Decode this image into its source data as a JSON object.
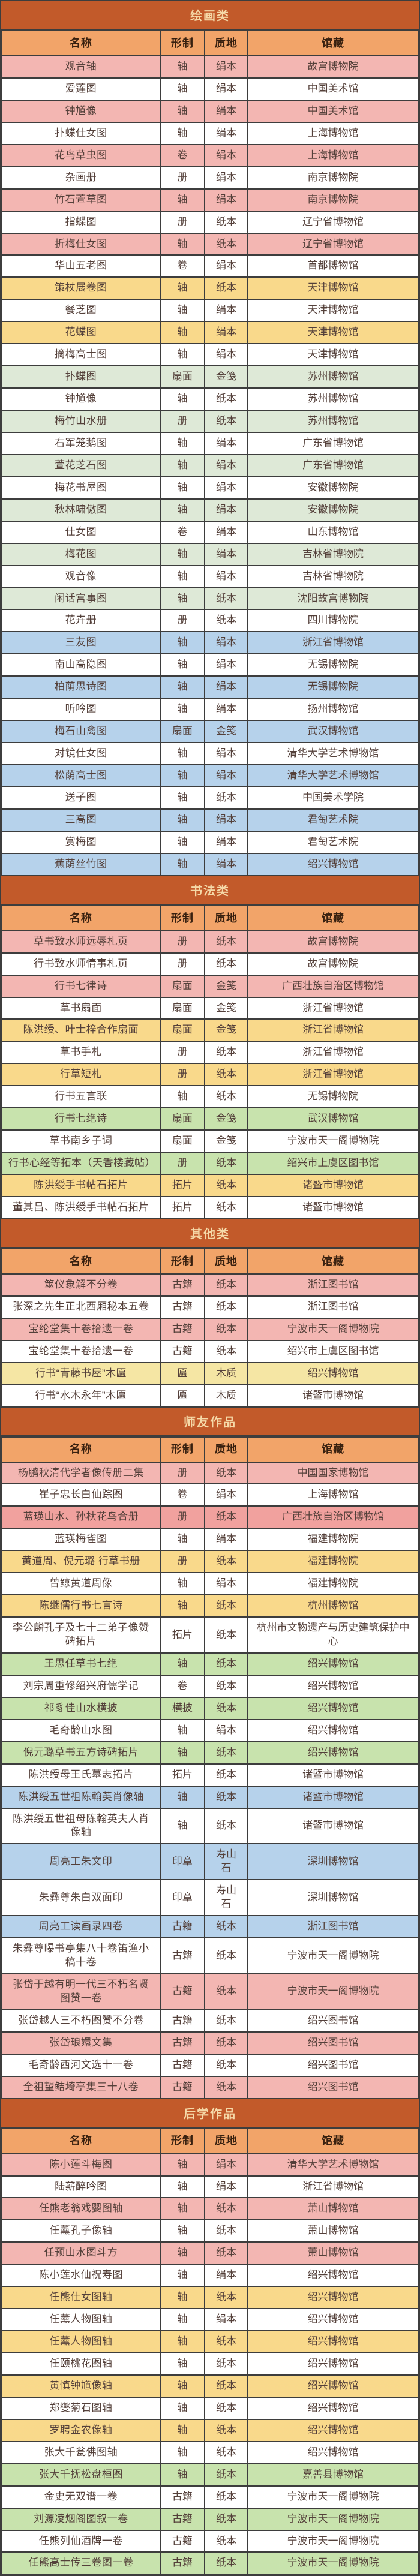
{
  "columns": {
    "name": "名称",
    "form": "形制",
    "material": "质地",
    "museum": "馆藏"
  },
  "palette": {
    "section_bg": "#c25a2a",
    "section_text": "#f5d9a8",
    "header_bg": "#f2a469",
    "header_text": "#38200f",
    "grid_line": "#3d3d3d",
    "row_text": "#54403a",
    "row_colors": {
      "white": "#ffffff",
      "pink": "#f3b6b2",
      "red": "#f1a19e",
      "yellow": "#f9d98b",
      "paleyellow": "#f5e6a4",
      "greenpale": "#dee9d7",
      "green": "#c8e3ad",
      "blue": "#b6d2eb"
    }
  },
  "sections": [
    {
      "title": "绘画类",
      "rows": [
        {
          "name": "观音轴",
          "form": "轴",
          "material": "绢本",
          "museum": "故宫博物院",
          "bg": "pink"
        },
        {
          "name": "爱莲图",
          "form": "轴",
          "material": "绢本",
          "museum": "中国美术馆",
          "bg": "white"
        },
        {
          "name": "钟馗像",
          "form": "轴",
          "material": "绢本",
          "museum": "中国美术馆",
          "bg": "pink"
        },
        {
          "name": "扑蝶仕女图",
          "form": "轴",
          "material": "绢本",
          "museum": "上海博物馆",
          "bg": "white"
        },
        {
          "name": "花鸟草虫图",
          "form": "卷",
          "material": "绢本",
          "museum": "上海博物馆",
          "bg": "pink"
        },
        {
          "name": "杂画册",
          "form": "册",
          "material": "绢本",
          "museum": "南京博物院",
          "bg": "white"
        },
        {
          "name": "竹石萱草图",
          "form": "轴",
          "material": "绢本",
          "museum": "南京博物院",
          "bg": "pink"
        },
        {
          "name": "指蝶图",
          "form": "册",
          "material": "纸本",
          "museum": "辽宁省博物馆",
          "bg": "white"
        },
        {
          "name": "折梅仕女图",
          "form": "轴",
          "material": "纸本",
          "museum": "辽宁省博物馆",
          "bg": "pink"
        },
        {
          "name": "华山五老图",
          "form": "卷",
          "material": "绢本",
          "museum": "首都博物馆",
          "bg": "white"
        },
        {
          "name": "策杖展卷图",
          "form": "轴",
          "material": "纸本",
          "museum": "天津博物馆",
          "bg": "yellow"
        },
        {
          "name": "餐芝图",
          "form": "轴",
          "material": "绢本",
          "museum": "天津博物馆",
          "bg": "white"
        },
        {
          "name": "花蝶图",
          "form": "轴",
          "material": "绢本",
          "museum": "天津博物馆",
          "bg": "yellow"
        },
        {
          "name": "摘梅高士图",
          "form": "轴",
          "material": "绢本",
          "museum": "天津博物馆",
          "bg": "white"
        },
        {
          "name": "扑蝶图",
          "form": "扇面",
          "material": "金笺",
          "museum": "苏州博物馆",
          "bg": "greenpale"
        },
        {
          "name": "钟馗像",
          "form": "轴",
          "material": "纸本",
          "museum": "苏州博物馆",
          "bg": "white"
        },
        {
          "name": "梅竹山水册",
          "form": "册",
          "material": "纸本",
          "museum": "苏州博物馆",
          "bg": "greenpale"
        },
        {
          "name": "右军笼鹅图",
          "form": "轴",
          "material": "绢本",
          "museum": "广东省博物馆",
          "bg": "white"
        },
        {
          "name": "萱花芝石图",
          "form": "轴",
          "material": "绢本",
          "museum": "广东省博物馆",
          "bg": "greenpale"
        },
        {
          "name": "梅花书屋图",
          "form": "轴",
          "material": "绢本",
          "museum": "安徽博物院",
          "bg": "white"
        },
        {
          "name": "秋林啸傲图",
          "form": "轴",
          "material": "绢本",
          "museum": "安徽博物院",
          "bg": "greenpale"
        },
        {
          "name": "仕女图",
          "form": "卷",
          "material": "绢本",
          "museum": "山东博物馆",
          "bg": "white"
        },
        {
          "name": "梅花图",
          "form": "轴",
          "material": "绢本",
          "museum": "吉林省博物院",
          "bg": "greenpale"
        },
        {
          "name": "观音像",
          "form": "轴",
          "material": "绢本",
          "museum": "吉林省博物院",
          "bg": "white"
        },
        {
          "name": "闲话宫事图",
          "form": "轴",
          "material": "纸本",
          "museum": "沈阳故宫博物院",
          "bg": "greenpale"
        },
        {
          "name": "花卉册",
          "form": "册",
          "material": "纸本",
          "museum": "四川博物院",
          "bg": "white"
        },
        {
          "name": "三友图",
          "form": "轴",
          "material": "绢本",
          "museum": "浙江省博物馆",
          "bg": "blue"
        },
        {
          "name": "南山高隐图",
          "form": "轴",
          "material": "绢本",
          "museum": "无锡博物院",
          "bg": "white"
        },
        {
          "name": "柏荫思诗图",
          "form": "轴",
          "material": "绢本",
          "museum": "无锡博物院",
          "bg": "blue"
        },
        {
          "name": "听吟图",
          "form": "轴",
          "material": "绢本",
          "museum": "扬州博物馆",
          "bg": "white"
        },
        {
          "name": "梅石山禽图",
          "form": "扇面",
          "material": "金笺",
          "museum": "武汉博物馆",
          "bg": "blue"
        },
        {
          "name": "对镜仕女图",
          "form": "轴",
          "material": "绢本",
          "museum": "清华大学艺术博物馆",
          "bg": "white"
        },
        {
          "name": "松荫高士图",
          "form": "轴",
          "material": "绢本",
          "museum": "清华大学艺术博物馆",
          "bg": "blue"
        },
        {
          "name": "送子图",
          "form": "轴",
          "material": "纸本",
          "museum": "中国美术学院",
          "bg": "white"
        },
        {
          "name": "三高图",
          "form": "轴",
          "material": "绢本",
          "museum": "君匋艺术院",
          "bg": "blue"
        },
        {
          "name": "赏梅图",
          "form": "轴",
          "material": "绢本",
          "museum": "君匋艺术院",
          "bg": "white"
        },
        {
          "name": "蕉荫丝竹图",
          "form": "轴",
          "material": "绢本",
          "museum": "绍兴博物馆",
          "bg": "blue"
        }
      ]
    },
    {
      "title": "书法类",
      "rows": [
        {
          "name": "草书致水师远辱札页",
          "form": "册",
          "material": "纸本",
          "museum": "故宫博物院",
          "bg": "pink"
        },
        {
          "name": "行书致水师情事札页",
          "form": "册",
          "material": "纸本",
          "museum": "故宫博物院",
          "bg": "white"
        },
        {
          "name": "行书七律诗",
          "form": "扇面",
          "material": "金笺",
          "museum": "广西壮族自治区博物馆",
          "bg": "pink"
        },
        {
          "name": "草书扇面",
          "form": "扇面",
          "material": "金笺",
          "museum": "浙江省博物馆",
          "bg": "white"
        },
        {
          "name": "陈洪绶、叶士梓合作扇面",
          "form": "扇面",
          "material": "金笺",
          "museum": "浙江省博物馆",
          "bg": "yellow"
        },
        {
          "name": "草书手札",
          "form": "册",
          "material": "纸本",
          "museum": "浙江省博物馆",
          "bg": "white"
        },
        {
          "name": "行草短札",
          "form": "册",
          "material": "纸本",
          "museum": "浙江省博物馆",
          "bg": "yellow"
        },
        {
          "name": "行书五言联",
          "form": "轴",
          "material": "纸本",
          "museum": "无锡博物院",
          "bg": "white"
        },
        {
          "name": "行书七绝诗",
          "form": "扇面",
          "material": "金笺",
          "museum": "武汉博物馆",
          "bg": "green"
        },
        {
          "name": "草书南乡子词",
          "form": "扇面",
          "material": "金笺",
          "museum": "宁波市天一阁博物院",
          "bg": "white"
        },
        {
          "name": "行书心经等拓本（天香楼藏帖）",
          "form": "册",
          "material": "纸本",
          "museum": "绍兴市上虞区图书馆",
          "bg": "green"
        },
        {
          "name": "陈洪绶手书帖石拓片",
          "form": "拓片",
          "material": "纸本",
          "museum": "诸暨市博物馆",
          "bg": "yellow"
        },
        {
          "name": "董其昌、陈洪绶手书帖石拓片",
          "form": "拓片",
          "material": "纸本",
          "museum": "诸暨市博物馆",
          "bg": "white"
        }
      ]
    },
    {
      "title": "其他类",
      "rows": [
        {
          "name": "筮仪象解不分卷",
          "form": "古籍",
          "material": "纸本",
          "museum": "浙江图书馆",
          "bg": "pink"
        },
        {
          "name": "张深之先生正北西厢秘本五卷",
          "form": "古籍",
          "material": "纸本",
          "museum": "浙江图书馆",
          "bg": "white"
        },
        {
          "name": "宝纶堂集十卷拾遗一卷",
          "form": "古籍",
          "material": "纸本",
          "museum": "宁波市天一阁博物院",
          "bg": "pink"
        },
        {
          "name": "宝纶堂集十卷拾遗一卷",
          "form": "古籍",
          "material": "纸本",
          "museum": "绍兴市上虞区图书馆",
          "bg": "white"
        },
        {
          "name": "行书“青藤书屋”木匾",
          "form": "匾",
          "material": "木质",
          "museum": "绍兴博物馆",
          "bg": "paleyellow"
        },
        {
          "name": "行书“水木永年”木匾",
          "form": "匾",
          "material": "木质",
          "museum": "诸暨市博物馆",
          "bg": "white"
        }
      ]
    },
    {
      "title": "师友作品",
      "rows": [
        {
          "name": "杨鹏秋清代学者像传册二集",
          "form": "册",
          "material": "纸本",
          "museum": "中国国家博物馆",
          "bg": "pink"
        },
        {
          "name": "崔子忠长白仙踪图",
          "form": "卷",
          "material": "绢本",
          "museum": "上海博物馆",
          "bg": "white"
        },
        {
          "name": "蓝瑛山水、孙杕花鸟合册",
          "form": "册",
          "material": "纸本",
          "museum": "广西壮族自治区博物馆",
          "bg": "red"
        },
        {
          "name": "蓝瑛梅雀图",
          "form": "轴",
          "material": "绢本",
          "museum": "福建博物院",
          "bg": "white"
        },
        {
          "name": "黄道周、倪元璐 行草书册",
          "form": "册",
          "material": "纸本",
          "museum": "福建博物院",
          "bg": "yellow"
        },
        {
          "name": "曾鲸黄道周像",
          "form": "轴",
          "material": "绢本",
          "museum": "福建博物院",
          "bg": "white"
        },
        {
          "name": "陈继儒行书七言诗",
          "form": "轴",
          "material": "纸本",
          "museum": "杭州博物馆",
          "bg": "yellow"
        },
        {
          "name": "李公麟孔子及七十二弟子像赞碑拓片",
          "form": "拓片",
          "material": "纸本",
          "museum": "杭州市文物遗产与历史建筑保护中心",
          "bg": "white"
        },
        {
          "name": "王思任草书七绝",
          "form": "轴",
          "material": "纸本",
          "museum": "绍兴博物馆",
          "bg": "green"
        },
        {
          "name": "刘宗周重修绍兴府儒学记",
          "form": "卷",
          "material": "纸本",
          "museum": "绍兴博物馆",
          "bg": "white"
        },
        {
          "name": "祁豸佳山水横披",
          "form": "横披",
          "material": "纸本",
          "museum": "绍兴博物馆",
          "bg": "green"
        },
        {
          "name": "毛奇龄山水图",
          "form": "轴",
          "material": "绢本",
          "museum": "绍兴博物馆",
          "bg": "white"
        },
        {
          "name": "倪元璐草书五方诗碑拓片",
          "form": "轴",
          "material": "纸本",
          "museum": "绍兴博物馆",
          "bg": "green"
        },
        {
          "name": "陈洪绶母王氏墓志拓片",
          "form": "拓片",
          "material": "纸本",
          "museum": "诸暨市博物馆",
          "bg": "white"
        },
        {
          "name": "陈洪绶五世祖陈翰英肖像轴",
          "form": "轴",
          "material": "纸本",
          "museum": "诸暨市博物馆",
          "bg": "blue"
        },
        {
          "name": "陈洪绶五世祖母陈翰英夫人肖像轴",
          "form": "轴",
          "material": "纸本",
          "museum": "诸暨市博物馆",
          "bg": "white"
        },
        {
          "name": "周亮工朱文印",
          "form": "印章",
          "material": "寿山石",
          "museum": "深圳博物馆",
          "bg": "blue"
        },
        {
          "name": "朱彝尊朱白双面印",
          "form": "印章",
          "material": "寿山石",
          "museum": "深圳博物馆",
          "bg": "white"
        },
        {
          "name": "周亮工读画录四卷",
          "form": "古籍",
          "material": "纸本",
          "museum": "浙江图书馆",
          "bg": "blue"
        },
        {
          "name": "朱彝尊曝书亭集八十卷笛渔小稿十卷",
          "form": "古籍",
          "material": "纸本",
          "museum": "宁波市天一阁博物院",
          "bg": "white"
        },
        {
          "name": "张岱于越有明一代三不朽名贤图赞一卷",
          "form": "古籍",
          "material": "纸本",
          "museum": "宁波市天一阁博物院",
          "bg": "pink"
        },
        {
          "name": "张岱越人三不朽图赞不分卷",
          "form": "古籍",
          "material": "纸本",
          "museum": "绍兴图书馆",
          "bg": "white"
        },
        {
          "name": "张岱琅嬛文集",
          "form": "古籍",
          "material": "纸本",
          "museum": "绍兴图书馆",
          "bg": "pink"
        },
        {
          "name": "毛奇龄西河文选十一卷",
          "form": "古籍",
          "material": "纸本",
          "museum": "绍兴图书馆",
          "bg": "white"
        },
        {
          "name": "全祖望鲒埼亭集三十八卷",
          "form": "古籍",
          "material": "纸本",
          "museum": "绍兴图书馆",
          "bg": "pink"
        }
      ]
    },
    {
      "title": "后学作品",
      "rows": [
        {
          "name": "陈小莲斗梅图",
          "form": "轴",
          "material": "绢本",
          "museum": "清华大学艺术博物馆",
          "bg": "pink"
        },
        {
          "name": "陆薪醉吟图",
          "form": "轴",
          "material": "绢本",
          "museum": "浙江省博物馆",
          "bg": "white"
        },
        {
          "name": "任熊老翁戏婴图轴",
          "form": "轴",
          "material": "纸本",
          "museum": "萧山博物馆",
          "bg": "pink"
        },
        {
          "name": "任薰孔子像轴",
          "form": "轴",
          "material": "纸本",
          "museum": "萧山博物馆",
          "bg": "white"
        },
        {
          "name": "任预山水图斗方",
          "form": "轴",
          "material": "纸本",
          "museum": "萧山博物馆",
          "bg": "pink"
        },
        {
          "name": "陈小莲水仙祝寿图",
          "form": "轴",
          "material": "绢本",
          "museum": "绍兴博物馆",
          "bg": "white"
        },
        {
          "name": "任熊仕女图轴",
          "form": "轴",
          "material": "纸本",
          "museum": "绍兴博物馆",
          "bg": "yellow"
        },
        {
          "name": "任薰人物图轴",
          "form": "轴",
          "material": "绢本",
          "museum": "绍兴博物馆",
          "bg": "white"
        },
        {
          "name": "任薰人物图轴",
          "form": "轴",
          "material": "纸本",
          "museum": "绍兴博物馆",
          "bg": "yellow"
        },
        {
          "name": "任颐桃花图轴",
          "form": "轴",
          "material": "纸本",
          "museum": "绍兴博物馆",
          "bg": "white"
        },
        {
          "name": "黄慎钟馗像轴",
          "form": "轴",
          "material": "纸本",
          "museum": "绍兴博物馆",
          "bg": "yellow"
        },
        {
          "name": "郑燮菊石图轴",
          "form": "轴",
          "material": "纸本",
          "museum": "绍兴博物馆",
          "bg": "white"
        },
        {
          "name": "罗聘金农像轴",
          "form": "轴",
          "material": "纸本",
          "museum": "绍兴博物馆",
          "bg": "yellow"
        },
        {
          "name": "张大千瓮佛图轴",
          "form": "轴",
          "material": "纸本",
          "museum": "绍兴博物馆",
          "bg": "white"
        },
        {
          "name": "张大千抚松盘桓图",
          "form": "轴",
          "material": "纸本",
          "museum": "嘉善县博物馆",
          "bg": "green"
        },
        {
          "name": "金史无双谱一卷",
          "form": "古籍",
          "material": "纸本",
          "museum": "宁波市天一阁博物院",
          "bg": "white"
        },
        {
          "name": "刘源凌烟阁图叙一卷",
          "form": "古籍",
          "material": "纸本",
          "museum": "宁波市天一阁博物院",
          "bg": "green"
        },
        {
          "name": "任熊列仙酒牌一卷",
          "form": "古籍",
          "material": "纸本",
          "museum": "宁波市天一阁博物院",
          "bg": "white"
        },
        {
          "name": "任熊高士传三卷图一卷",
          "form": "古籍",
          "material": "纸本",
          "museum": "宁波市天一阁博物院",
          "bg": "green"
        }
      ]
    }
  ]
}
